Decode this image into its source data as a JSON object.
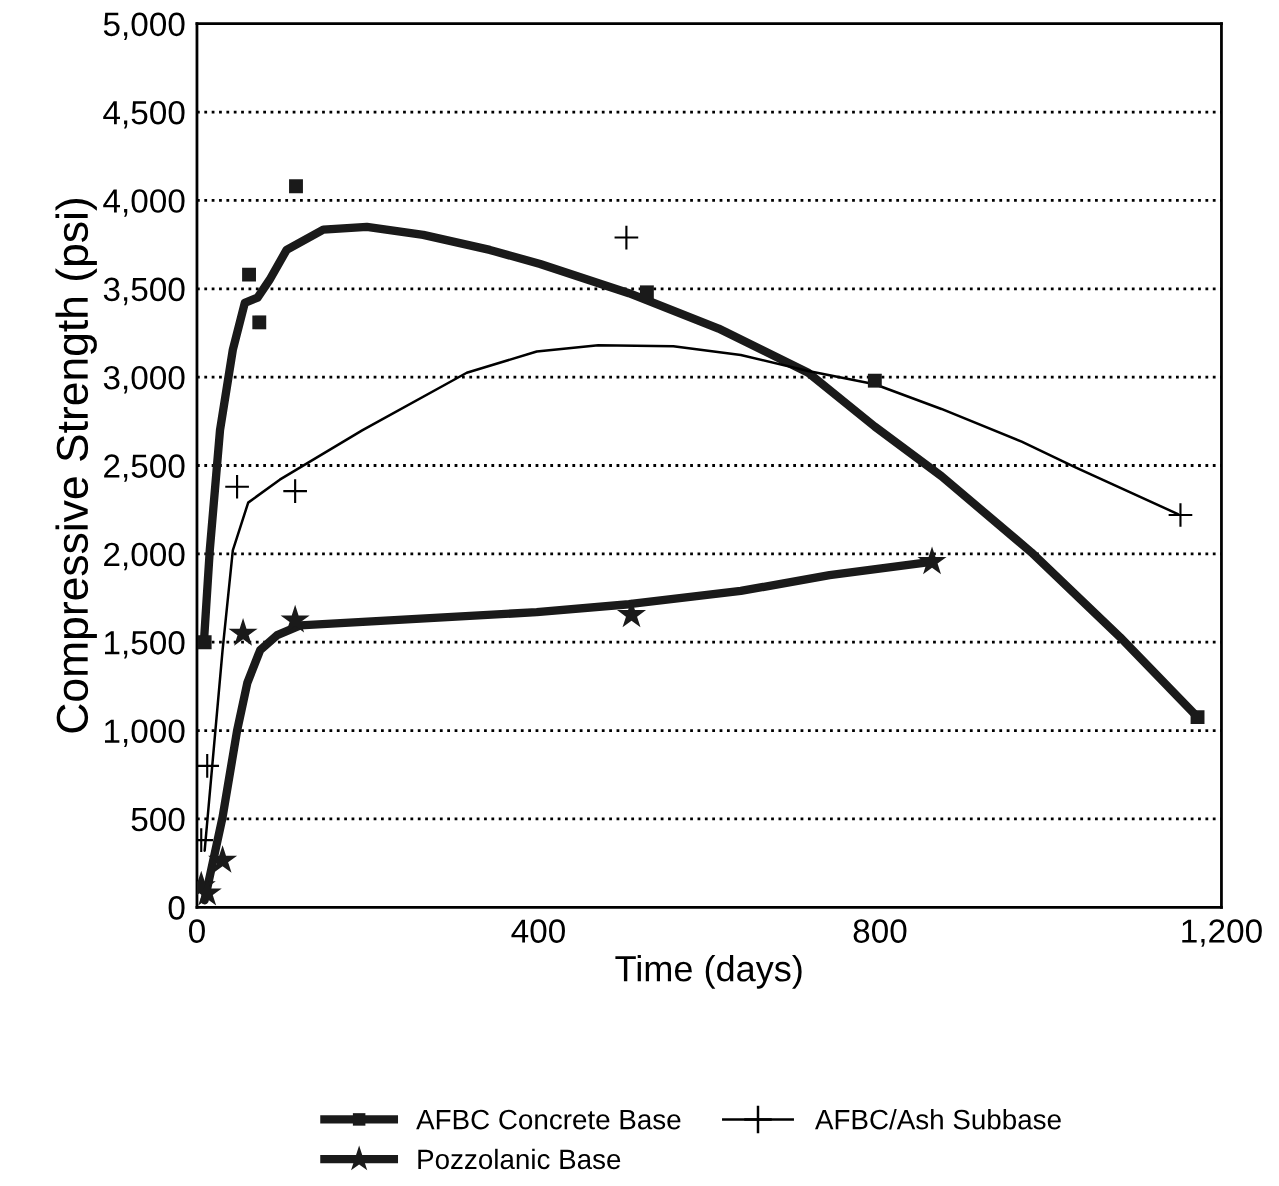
{
  "chart_data": {
    "type": "scatter",
    "xlabel": "Time (days)",
    "ylabel": "Compressive Strength (psi)",
    "xlim": [
      0,
      1200
    ],
    "ylim": [
      0,
      5000
    ],
    "xticks": [
      0,
      400,
      800,
      {
        "value": 1200,
        "label": "1,200"
      }
    ],
    "yticks": [
      0,
      500,
      {
        "value": 1000,
        "label": "1,000"
      },
      {
        "value": 1500,
        "label": "1,500"
      },
      {
        "value": 2000,
        "label": "2,000"
      },
      {
        "value": 2500,
        "label": "2,500"
      },
      {
        "value": 3000,
        "label": "3,000"
      },
      {
        "value": 3500,
        "label": "3,500"
      },
      {
        "value": 4000,
        "label": "4,000"
      },
      {
        "value": 4500,
        "label": "4,500"
      },
      {
        "value": 5000,
        "label": "5,000"
      }
    ],
    "grid": "y",
    "legend": "bottom",
    "series": [
      {
        "name": "AFBC Concrete Base",
        "type": "scatter",
        "marker": "square",
        "color": "#1a1a1a",
        "x": [
          9,
          61,
          73,
          116,
          527,
          794,
          1172
        ],
        "values": [
          1500,
          3580,
          3310,
          4080,
          3480,
          2980,
          1076
        ]
      },
      {
        "type": "line",
        "marker": "none",
        "color": "#1a1a1a",
        "x": [
          8,
          15,
          27,
          42,
          56,
          71,
          85,
          105,
          148,
          199,
          265,
          343,
          402,
          506,
          611,
          716,
          794,
          872,
          977,
          1081,
          1172
        ],
        "values": [
          1490,
          2020,
          2700,
          3155,
          3420,
          3450,
          3550,
          3720,
          3835,
          3850,
          3805,
          3720,
          3640,
          3475,
          3275,
          3025,
          2720,
          2440,
          2010,
          1530,
          1076
        ]
      },
      {
        "name": "AFBC/Ash Subbase",
        "type": "scatter",
        "marker": "cross",
        "color": "#000000",
        "x": [
          5,
          12,
          47,
          115,
          503,
          1152
        ],
        "values": [
          380,
          800,
          2380,
          2355,
          3790,
          2220
        ]
      },
      {
        "type": "line",
        "marker": "none",
        "color": "#000000",
        "x": [
          9,
          30,
          42,
          60,
          97,
          194,
          316,
          398,
          470,
          558,
          637,
          716,
          794,
          872,
          966,
          1029,
          1149
        ],
        "values": [
          320,
          1455,
          2020,
          2290,
          2420,
          2700,
          3025,
          3145,
          3180,
          3175,
          3125,
          3035,
          2960,
          2820,
          2635,
          2490,
          2225
        ]
      },
      {
        "name": "Pozzolanic Base",
        "type": "scatter",
        "marker": "star",
        "color": "#1a1a1a",
        "x": [
          5,
          12,
          30,
          54,
          115,
          509,
          861
        ],
        "values": [
          120,
          80,
          265,
          1550,
          1625,
          1655,
          1955
        ]
      },
      {
        "type": "line",
        "marker": "none",
        "color": "#1a1a1a",
        "x": [
          9,
          30,
          47,
          59,
          74,
          94,
          121,
          398,
          506,
          637,
          741,
          860
        ],
        "values": [
          40,
          510,
          1000,
          1270,
          1455,
          1540,
          1595,
          1670,
          1715,
          1790,
          1880,
          1955
        ]
      }
    ]
  }
}
